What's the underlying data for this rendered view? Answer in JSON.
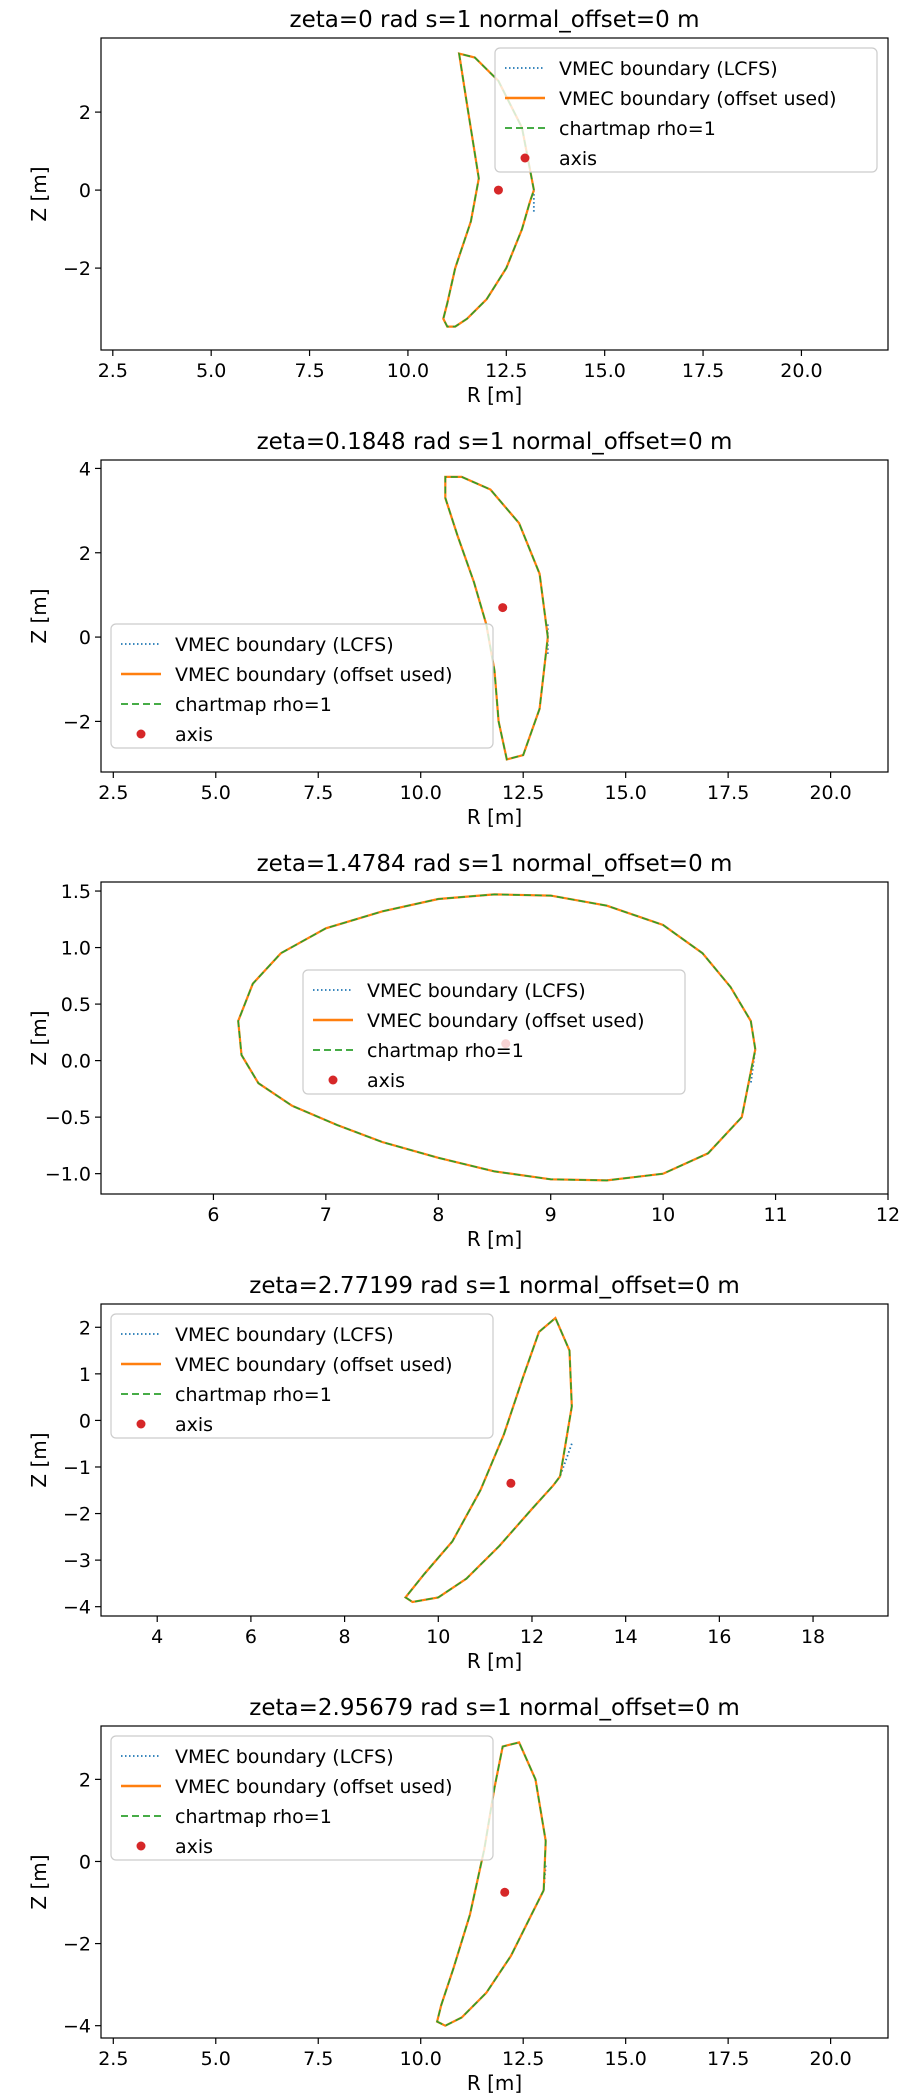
{
  "chart_data": [
    {
      "type": "line",
      "title": "zeta=0 rad  s=1  normal_offset=0 m",
      "xlabel": "R [m]",
      "ylabel": "Z [m]",
      "xlim": [
        2.2,
        22.2
      ],
      "ylim": [
        -4.1,
        3.9
      ],
      "xticks": [
        2.5,
        5.0,
        7.5,
        10.0,
        12.5,
        15.0,
        17.5,
        20.0
      ],
      "xtick_labels": [
        "2.5",
        "5.0",
        "7.5",
        "10.0",
        "12.5",
        "15.0",
        "17.5",
        "20.0"
      ],
      "yticks": [
        -2,
        0,
        2
      ],
      "ytick_labels": [
        "−2",
        "0",
        "2"
      ],
      "legend_position": "upper right",
      "legend": [
        "VMEC boundary (LCFS)",
        "VMEC boundary (offset used)",
        "chartmap rho=1",
        "axis"
      ],
      "grid": false,
      "axis": {
        "R": 12.3,
        "Z": 0.0
      },
      "boundary": {
        "R": [
          13.2,
          12.9,
          12.3,
          11.7,
          11.3,
          11.5,
          11.8,
          11.6,
          11.2,
          11.0,
          10.9,
          11.0,
          11.2,
          11.5,
          12.0,
          12.5,
          12.9,
          13.1,
          13.2
        ],
        "Z": [
          0.0,
          1.6,
          2.8,
          3.4,
          3.5,
          2.2,
          0.3,
          -0.8,
          -2.0,
          -2.9,
          -3.3,
          -3.5,
          -3.5,
          -3.3,
          -2.8,
          -2.0,
          -1.0,
          -0.3,
          0.0
        ]
      },
      "lcfs_only_segment": {
        "R": [
          13.2,
          13.2
        ],
        "Z": [
          0.0,
          -0.6
        ]
      }
    },
    {
      "type": "line",
      "title": "zeta=0.1848 rad  s=1  normal_offset=0 m",
      "xlabel": "R [m]",
      "ylabel": "Z [m]",
      "xlim": [
        2.2,
        21.4
      ],
      "ylim": [
        -3.2,
        4.2
      ],
      "xticks": [
        2.5,
        5.0,
        7.5,
        10.0,
        12.5,
        15.0,
        17.5,
        20.0
      ],
      "xtick_labels": [
        "2.5",
        "5.0",
        "7.5",
        "10.0",
        "12.5",
        "15.0",
        "17.5",
        "20.0"
      ],
      "yticks": [
        -2,
        0,
        2,
        4
      ],
      "ytick_labels": [
        "−2",
        "0",
        "2",
        "4"
      ],
      "legend_position": "lower left",
      "legend": [
        "VMEC boundary (LCFS)",
        "VMEC boundary (offset used)",
        "chartmap rho=1",
        "axis"
      ],
      "grid": false,
      "axis": {
        "R": 12.0,
        "Z": 0.7
      },
      "boundary": {
        "R": [
          13.1,
          12.9,
          12.4,
          11.7,
          11.0,
          10.6,
          10.6,
          10.9,
          11.3,
          11.6,
          11.8,
          11.9,
          12.1,
          12.5,
          12.9,
          13.1
        ],
        "Z": [
          0.0,
          1.5,
          2.7,
          3.5,
          3.8,
          3.8,
          3.3,
          2.4,
          1.3,
          0.3,
          -0.8,
          -2.0,
          -2.9,
          -2.8,
          -1.7,
          0.0
        ]
      },
      "lcfs_only_segment": {
        "R": [
          13.1,
          13.1
        ],
        "Z": [
          0.3,
          -0.4
        ]
      }
    },
    {
      "type": "line",
      "title": "zeta=1.4784 rad  s=1  normal_offset=0 m",
      "xlabel": "R [m]",
      "ylabel": "Z [m]",
      "xlim": [
        5.0,
        12.0
      ],
      "ylim": [
        -1.18,
        1.58
      ],
      "xticks": [
        6,
        7,
        8,
        9,
        10,
        11,
        12
      ],
      "xtick_labels": [
        "6",
        "7",
        "8",
        "9",
        "10",
        "11",
        "12"
      ],
      "yticks": [
        -1.0,
        -0.5,
        0.0,
        0.5,
        1.0,
        1.5
      ],
      "ytick_labels": [
        "−1.0",
        "−0.5",
        "0.0",
        "0.5",
        "1.0",
        "1.5"
      ],
      "legend_position": "center",
      "legend": [
        "VMEC boundary (LCFS)",
        "VMEC boundary (offset used)",
        "chartmap rho=1",
        "axis"
      ],
      "grid": false,
      "axis": {
        "R": 8.6,
        "Z": 0.15
      },
      "boundary": {
        "R": [
          10.82,
          10.78,
          10.6,
          10.35,
          10.0,
          9.5,
          9.0,
          8.5,
          8.0,
          7.5,
          7.0,
          6.6,
          6.35,
          6.22,
          6.25,
          6.4,
          6.7,
          7.1,
          7.5,
          8.0,
          8.5,
          9.0,
          9.5,
          10.0,
          10.4,
          10.7,
          10.82
        ],
        "Z": [
          0.1,
          0.35,
          0.65,
          0.95,
          1.2,
          1.37,
          1.46,
          1.47,
          1.43,
          1.32,
          1.17,
          0.95,
          0.68,
          0.35,
          0.05,
          -0.2,
          -0.4,
          -0.57,
          -0.72,
          -0.86,
          -0.98,
          -1.05,
          -1.06,
          -1.0,
          -0.82,
          -0.5,
          0.1
        ]
      },
      "lcfs_only_segment": {
        "R": [
          10.82,
          10.78
        ],
        "Z": [
          0.1,
          -0.2
        ]
      }
    },
    {
      "type": "line",
      "title": "zeta=2.77199 rad  s=1  normal_offset=0 m",
      "xlabel": "R [m]",
      "ylabel": "Z [m]",
      "xlim": [
        2.8,
        19.6
      ],
      "ylim": [
        -4.2,
        2.5
      ],
      "xticks": [
        4,
        6,
        8,
        10,
        12,
        14,
        16,
        18
      ],
      "xtick_labels": [
        "4",
        "6",
        "8",
        "10",
        "12",
        "14",
        "16",
        "18"
      ],
      "yticks": [
        -4,
        -3,
        -2,
        -1,
        0,
        1,
        2
      ],
      "ytick_labels": [
        "−4",
        "−3",
        "−2",
        "−1",
        "0",
        "1",
        "2"
      ],
      "legend_position": "upper left",
      "legend": [
        "VMEC boundary (LCFS)",
        "VMEC boundary (offset used)",
        "chartmap rho=1",
        "axis"
      ],
      "grid": false,
      "axis": {
        "R": 11.55,
        "Z": -1.35
      },
      "boundary": {
        "R": [
          12.6,
          12.85,
          12.8,
          12.5,
          12.15,
          11.8,
          11.4,
          10.9,
          10.3,
          9.7,
          9.3,
          9.45,
          10.0,
          10.6,
          11.3,
          12.0,
          12.45,
          12.6
        ],
        "Z": [
          -1.2,
          0.3,
          1.5,
          2.2,
          1.9,
          0.9,
          -0.3,
          -1.5,
          -2.6,
          -3.3,
          -3.8,
          -3.9,
          -3.8,
          -3.4,
          -2.7,
          -1.9,
          -1.4,
          -1.2
        ]
      },
      "lcfs_only_segment": {
        "R": [
          12.85,
          12.6
        ],
        "Z": [
          -0.5,
          -1.2
        ]
      }
    },
    {
      "type": "line",
      "title": "zeta=2.95679 rad  s=1  normal_offset=0 m",
      "xlabel": "R [m]",
      "ylabel": "Z [m]",
      "xlim": [
        2.2,
        21.4
      ],
      "ylim": [
        -4.3,
        3.3
      ],
      "xticks": [
        2.5,
        5.0,
        7.5,
        10.0,
        12.5,
        15.0,
        17.5,
        20.0
      ],
      "xtick_labels": [
        "2.5",
        "5.0",
        "7.5",
        "10.0",
        "12.5",
        "15.0",
        "17.5",
        "20.0"
      ],
      "yticks": [
        -4,
        -2,
        0,
        2
      ],
      "ytick_labels": [
        "−4",
        "−2",
        "0",
        "2"
      ],
      "legend_position": "upper left",
      "legend": [
        "VMEC boundary (LCFS)",
        "VMEC boundary (offset used)",
        "chartmap rho=1",
        "axis"
      ],
      "grid": false,
      "axis": {
        "R": 12.05,
        "Z": -0.75
      },
      "boundary": {
        "R": [
          13.0,
          13.05,
          12.8,
          12.4,
          12.0,
          11.8,
          11.55,
          11.2,
          10.8,
          10.5,
          10.4,
          10.6,
          11.0,
          11.6,
          12.2,
          12.7,
          13.0
        ],
        "Z": [
          -0.7,
          0.5,
          2.0,
          2.9,
          2.8,
          1.8,
          0.3,
          -1.3,
          -2.6,
          -3.5,
          -3.9,
          -4.0,
          -3.8,
          -3.2,
          -2.3,
          -1.3,
          -0.7
        ]
      },
      "lcfs_only_segment": {
        "R": [
          13.05,
          13.0
        ],
        "Z": [
          -0.1,
          -0.7
        ]
      }
    }
  ],
  "colors": {
    "lcfs": "#1f77b4",
    "offset": "#ff7f0e",
    "chartmap": "#2ca02c",
    "axis": "#d62728",
    "legend_border": "#cccccc"
  }
}
